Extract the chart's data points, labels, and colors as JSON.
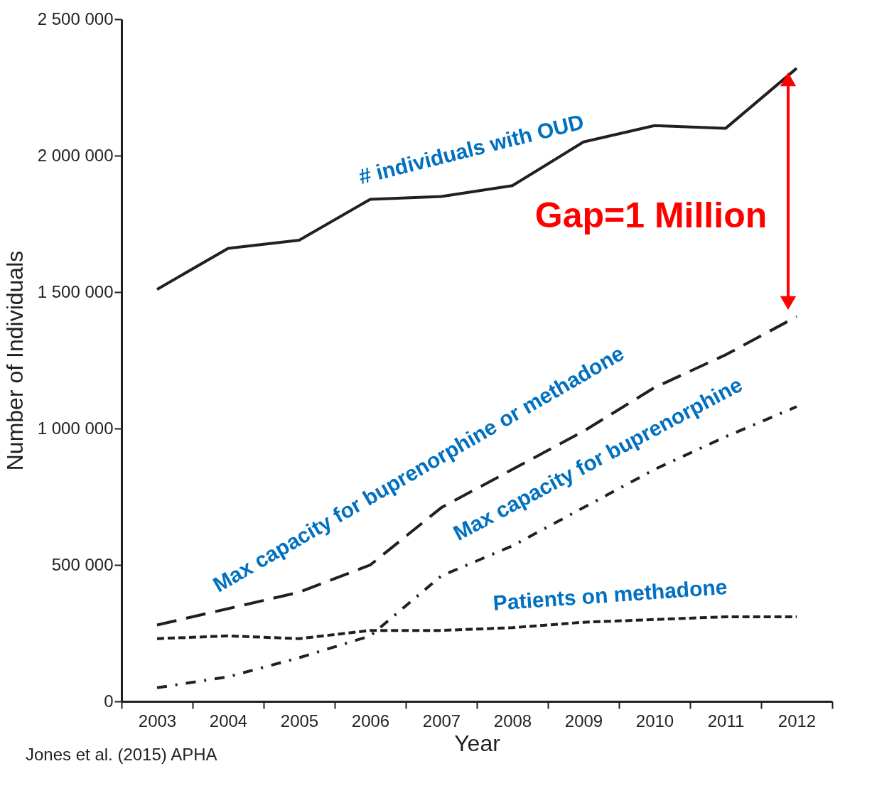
{
  "chart_data": {
    "type": "line",
    "xlabel": "Year",
    "ylabel": "Number of Individuals",
    "categories": [
      "2003",
      "2004",
      "2005",
      "2006",
      "2007",
      "2008",
      "2009",
      "2010",
      "2011",
      "2012"
    ],
    "ylim": [
      0,
      2500000
    ],
    "yticks": [
      {
        "value": 0,
        "label": "0"
      },
      {
        "value": 500000,
        "label": "500 000"
      },
      {
        "value": 1000000,
        "label": "1 000 000"
      },
      {
        "value": 1500000,
        "label": "1 500 000"
      },
      {
        "value": 2000000,
        "label": "2 000 000"
      },
      {
        "value": 2500000,
        "label": "2 500 000"
      }
    ],
    "marker": "none",
    "series": [
      {
        "name": "# individuals with OUD",
        "color": "#231f20",
        "line_style": "solid",
        "values": [
          1510000,
          1660000,
          1690000,
          1840000,
          1850000,
          1890000,
          2050000,
          2110000,
          2100000,
          2320000
        ]
      },
      {
        "name": "Max capacity for buprenorphine or methadone",
        "color": "#231f20",
        "line_style": "dashed",
        "values": [
          280000,
          340000,
          400000,
          500000,
          710000,
          850000,
          990000,
          1150000,
          1270000,
          1410000
        ]
      },
      {
        "name": "Max capacity for buprenorphine",
        "color": "#231f20",
        "line_style": "dashdot",
        "values": [
          50000,
          90000,
          160000,
          240000,
          460000,
          570000,
          710000,
          850000,
          970000,
          1080000
        ]
      },
      {
        "name": "Patients on methadone",
        "color": "#231f20",
        "line_style": "dotted",
        "values": [
          230000,
          240000,
          230000,
          260000,
          260000,
          270000,
          290000,
          300000,
          310000,
          310000
        ]
      }
    ],
    "annotations": [
      "Gap=1 Million",
      "Jones et al. (2015) APHA"
    ]
  }
}
